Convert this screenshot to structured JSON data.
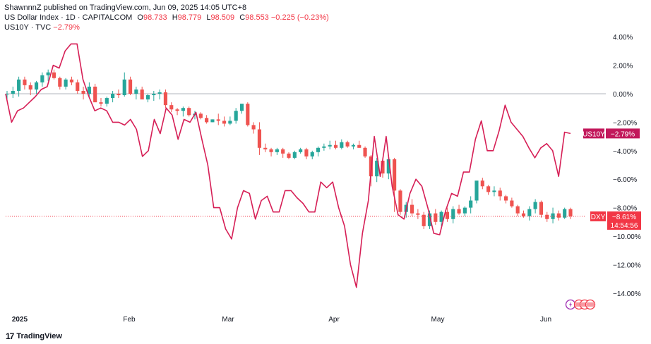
{
  "header": {
    "publisher_line": "ShawnnnZ published on TradingView.com, Jun 09, 2025 14:05 UTC+8",
    "main_symbol": "US Dollar Index · 1D · CAPITALCOM",
    "ohlc": {
      "o_label": "O",
      "o": "98.733",
      "h_label": "H",
      "h": "98.779",
      "l_label": "L",
      "l": "98.509",
      "c_label": "C",
      "c": "98.553",
      "change": "−0.225 (−0.23%)"
    },
    "compare_symbol": "US10Y · TVC",
    "compare_change": "−2.79%"
  },
  "brand": {
    "name": "TradingView",
    "logo": "17"
  },
  "colors": {
    "up": "#26a69a",
    "down": "#ef5350",
    "line": "#d61f56",
    "zero_line": "#b2b5be",
    "price_line": "#f23645",
    "badge_us10y": "#c2185b",
    "badge_dxy": "#f23645"
  },
  "chart_data": {
    "type": "line",
    "y_axis": {
      "unit": "%",
      "ticks": [
        "4.00%",
        "2.00%",
        "0.00%",
        "−2.00%",
        "−4.00%",
        "−6.00%",
        "−8.00%",
        "−10.00%",
        "−12.00%",
        "−14.00%"
      ],
      "min": -14.5,
      "max": 4.5,
      "position": "right",
      "scale": "percent-change"
    },
    "x_axis": {
      "ticks": [
        "2025",
        "Feb",
        "Mar",
        "Apr",
        "May",
        "Jun"
      ],
      "bold_tick": "2025"
    },
    "grid": false,
    "zero_line": true,
    "badges": [
      {
        "name": "US10Y",
        "value": "−2.79%"
      },
      {
        "name": "DXY",
        "value": "−8.61%",
        "countdown": "14:54:56"
      }
    ],
    "series": [
      {
        "name": "US10Y",
        "kind": "line",
        "values": [
          0.0,
          -2.0,
          -1.2,
          -1.0,
          -0.6,
          -0.2,
          0.3,
          0.5,
          2.0,
          1.8,
          3.0,
          3.5,
          3.5,
          1.0,
          -0.2,
          -1.2,
          -1.0,
          -1.2,
          -2.0,
          -2.0,
          -2.2,
          -1.8,
          -2.5,
          -4.4,
          -4.0,
          -1.8,
          -2.8,
          -1.0,
          -1.5,
          -3.2,
          -1.8,
          -2.0,
          -1.3,
          -3.2,
          -5.0,
          -8.0,
          -8.0,
          -9.5,
          -10.2,
          -8.0,
          -6.8,
          -7.0,
          -8.8,
          -7.5,
          -7.2,
          -8.3,
          -8.3,
          -6.8,
          -6.8,
          -7.3,
          -7.7,
          -8.3,
          -8.3,
          -6.2,
          -6.6,
          -6.2,
          -8.0,
          -9.3,
          -12.0,
          -13.6,
          -9.8,
          -7.5,
          -3.0,
          -5.8,
          -3.0,
          -6.5,
          -8.5,
          -8.8,
          -7.0,
          -6.0,
          -6.5,
          -8.0,
          -9.8,
          -9.9,
          -8.2,
          -7.0,
          -7.2,
          -5.5,
          -5.5,
          -3.2,
          -1.9,
          -4.0,
          -4.0,
          -2.6,
          -0.8,
          -2.0,
          -2.5,
          -3.0,
          -3.8,
          -4.5,
          -3.8,
          -3.5,
          -4.0,
          -5.8,
          -2.7,
          -2.79
        ]
      },
      {
        "name": "DXY",
        "kind": "candlestick",
        "fields": [
          "open",
          "high",
          "low",
          "close"
        ],
        "values": [
          [
            0.0,
            0.2,
            -0.4,
            0.0
          ],
          [
            0.0,
            0.5,
            -0.3,
            0.2
          ],
          [
            0.2,
            1.2,
            -0.2,
            1.0
          ],
          [
            1.0,
            1.2,
            0.3,
            0.6
          ],
          [
            0.6,
            0.8,
            -0.1,
            0.3
          ],
          [
            0.3,
            0.9,
            0.0,
            0.8
          ],
          [
            0.8,
            1.5,
            0.5,
            1.3
          ],
          [
            1.3,
            1.7,
            0.9,
            1.5
          ],
          [
            1.5,
            1.7,
            1.0,
            1.1
          ],
          [
            1.1,
            1.2,
            0.3,
            0.5
          ],
          [
            0.5,
            1.1,
            0.3,
            1.0
          ],
          [
            1.0,
            1.2,
            0.6,
            0.8
          ],
          [
            0.8,
            1.0,
            0.0,
            0.2
          ],
          [
            0.2,
            0.5,
            -0.4,
            0.0
          ],
          [
            0.0,
            0.8,
            -0.3,
            0.5
          ],
          [
            0.5,
            0.7,
            -0.5,
            -0.6
          ],
          [
            -0.6,
            -0.3,
            -0.9,
            -0.7
          ],
          [
            -0.7,
            -0.2,
            -0.9,
            -0.3
          ],
          [
            -0.3,
            0.2,
            -0.6,
            0.0
          ],
          [
            0.0,
            0.3,
            -0.3,
            -0.1
          ],
          [
            -0.1,
            1.5,
            -0.2,
            1.0
          ],
          [
            1.0,
            1.2,
            -0.1,
            0.0
          ],
          [
            0.0,
            0.5,
            -0.4,
            0.3
          ],
          [
            0.3,
            0.5,
            -0.3,
            -0.4
          ],
          [
            -0.4,
            0.0,
            -0.6,
            -0.1
          ],
          [
            -0.1,
            0.2,
            -0.5,
            0.0
          ],
          [
            0.0,
            0.3,
            -0.4,
            0.1
          ],
          [
            0.1,
            0.3,
            -1.0,
            -0.8
          ],
          [
            -0.8,
            -0.6,
            -1.3,
            -1.1
          ],
          [
            -1.1,
            -1.0,
            -1.5,
            -1.2
          ],
          [
            -1.2,
            -0.9,
            -1.6,
            -1.0
          ],
          [
            -1.0,
            -0.9,
            -1.6,
            -1.5
          ],
          [
            -1.5,
            -1.2,
            -1.8,
            -1.4
          ],
          [
            -1.4,
            -1.3,
            -1.8,
            -1.7
          ],
          [
            -1.7,
            -1.5,
            -2.1,
            -2.0
          ],
          [
            -2.0,
            -1.8,
            -2.0,
            -1.8
          ],
          [
            -1.8,
            -1.4,
            -2.2,
            -1.9
          ],
          [
            -1.9,
            -1.6,
            -2.3,
            -2.1
          ],
          [
            -2.1,
            -1.6,
            -2.2,
            -1.9
          ],
          [
            -1.9,
            -1.0,
            -2.1,
            -1.2
          ],
          [
            -1.2,
            -0.8,
            -1.4,
            -0.7
          ],
          [
            -0.7,
            -0.6,
            -2.3,
            -2.2
          ],
          [
            -2.2,
            -2.0,
            -2.8,
            -2.5
          ],
          [
            -2.5,
            -2.0,
            -4.3,
            -3.8
          ],
          [
            -3.8,
            -3.5,
            -4.1,
            -3.9
          ],
          [
            -3.9,
            -3.8,
            -4.4,
            -4.1
          ],
          [
            -4.1,
            -3.8,
            -4.3,
            -3.9
          ],
          [
            -3.9,
            -3.8,
            -4.5,
            -4.2
          ],
          [
            -4.2,
            -4.1,
            -4.6,
            -4.5
          ],
          [
            -4.5,
            -4.0,
            -4.6,
            -4.1
          ],
          [
            -4.1,
            -3.8,
            -4.2,
            -3.9
          ],
          [
            -3.9,
            -3.8,
            -4.6,
            -4.4
          ],
          [
            -4.4,
            -4.0,
            -4.6,
            -4.1
          ],
          [
            -4.1,
            -3.7,
            -4.4,
            -3.8
          ],
          [
            -3.8,
            -3.5,
            -4.0,
            -3.7
          ],
          [
            -3.7,
            -3.3,
            -3.9,
            -3.6
          ],
          [
            -3.6,
            -3.3,
            -3.9,
            -3.8
          ],
          [
            -3.8,
            -3.2,
            -3.9,
            -3.4
          ],
          [
            -3.4,
            -3.3,
            -3.8,
            -3.7
          ],
          [
            -3.7,
            -3.5,
            -3.9,
            -3.6
          ],
          [
            -3.6,
            -3.3,
            -3.8,
            -3.8
          ],
          [
            -3.8,
            -3.7,
            -4.5,
            -4.4
          ],
          [
            -4.4,
            -4.3,
            -6.5,
            -5.8
          ],
          [
            -5.8,
            -4.5,
            -6.2,
            -4.7
          ],
          [
            -4.7,
            -4.5,
            -5.9,
            -5.6
          ],
          [
            -5.6,
            -4.3,
            -6.0,
            -4.6
          ],
          [
            -4.6,
            -4.5,
            -8.3,
            -6.8
          ],
          [
            -6.8,
            -6.7,
            -8.5,
            -8.3
          ],
          [
            -8.3,
            -7.6,
            -8.7,
            -7.8
          ],
          [
            -7.8,
            -7.4,
            -8.6,
            -8.4
          ],
          [
            -8.4,
            -8.1,
            -8.8,
            -8.5
          ],
          [
            -8.5,
            -8.3,
            -9.5,
            -9.3
          ],
          [
            -9.3,
            -8.2,
            -9.5,
            -8.4
          ],
          [
            -8.4,
            -8.1,
            -9.2,
            -9.0
          ],
          [
            -9.0,
            -8.2,
            -9.3,
            -8.3
          ],
          [
            -8.3,
            -8.0,
            -9.0,
            -8.8
          ],
          [
            -8.8,
            -7.9,
            -9.1,
            -8.1
          ],
          [
            -8.1,
            -7.8,
            -8.5,
            -8.4
          ],
          [
            -8.4,
            -7.9,
            -8.6,
            -8.0
          ],
          [
            -8.0,
            -7.2,
            -8.4,
            -7.5
          ],
          [
            -7.5,
            -6.3,
            -7.7,
            -6.1
          ],
          [
            -6.1,
            -5.9,
            -6.7,
            -6.5
          ],
          [
            -6.5,
            -6.4,
            -7.1,
            -6.9
          ],
          [
            -6.9,
            -6.5,
            -7.2,
            -6.8
          ],
          [
            -6.8,
            -6.6,
            -7.5,
            -7.2
          ],
          [
            -7.2,
            -7.1,
            -7.7,
            -7.5
          ],
          [
            -7.5,
            -7.3,
            -8.0,
            -7.9
          ],
          [
            -7.9,
            -7.8,
            -8.6,
            -8.4
          ],
          [
            -8.4,
            -8.2,
            -8.7,
            -8.6
          ],
          [
            -8.6,
            -7.9,
            -8.9,
            -8.1
          ],
          [
            -8.1,
            -7.4,
            -8.4,
            -7.6
          ],
          [
            -7.6,
            -7.5,
            -8.7,
            -8.5
          ],
          [
            -8.5,
            -8.3,
            -9.0,
            -8.8
          ],
          [
            -8.8,
            -8.0,
            -9.1,
            -8.4
          ],
          [
            -8.4,
            -8.2,
            -8.9,
            -8.7
          ],
          [
            -8.7,
            -8.0,
            -8.8,
            -8.1
          ],
          [
            -8.1,
            -8.0,
            -8.8,
            -8.61
          ]
        ]
      }
    ]
  }
}
